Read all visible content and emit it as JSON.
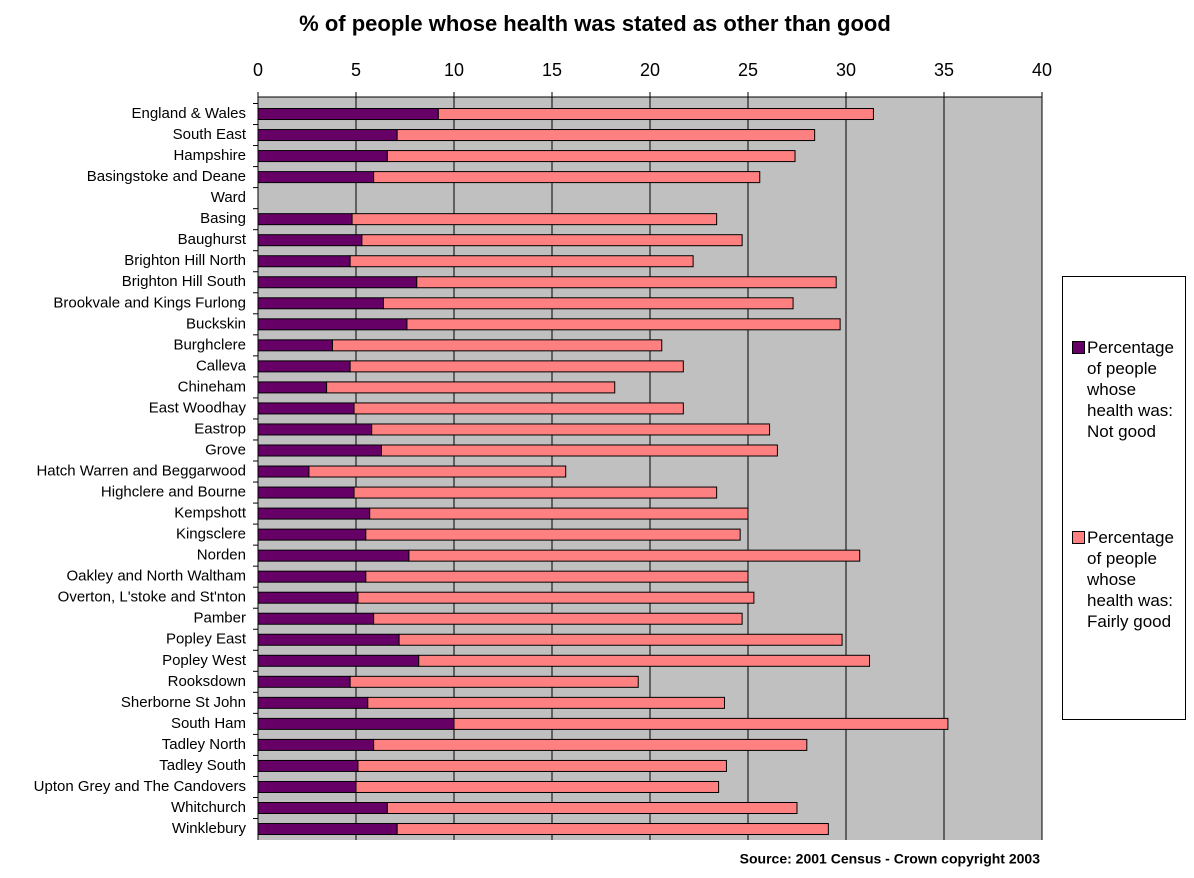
{
  "chart_data": {
    "type": "stacked_barh",
    "title": "% of people whose health was stated as other than good",
    "source": "Source: 2001 Census - Crown copyright 2003",
    "categories": [
      "England & Wales",
      "South East",
      "Hampshire",
      "Basingstoke and Deane",
      "Ward",
      "Basing",
      "Baughurst",
      "Brighton Hill North",
      "Brighton Hill South",
      "Brookvale and Kings Furlong",
      "Buckskin",
      "Burghclere",
      "Calleva",
      "Chineham",
      "East Woodhay",
      "Eastrop",
      "Grove",
      "Hatch Warren and Beggarwood",
      "Highclere and Bourne",
      "Kempshott",
      "Kingsclere",
      "Norden",
      "Oakley and North Waltham",
      "Overton, L'stoke and St'nton",
      "Pamber",
      "Popley East",
      "Popley West",
      "Rooksdown",
      "Sherborne St John",
      "South Ham",
      "Tadley North",
      "Tadley South",
      "Upton Grey and The Candovers",
      "Whitchurch",
      "Winklebury"
    ],
    "series": [
      {
        "name": "Percentage of people whose health was: Not good",
        "color": "#660066",
        "values": [
          9.2,
          7.1,
          6.6,
          5.9,
          null,
          4.8,
          5.3,
          4.7,
          8.1,
          6.4,
          7.6,
          3.8,
          4.7,
          3.5,
          4.9,
          5.8,
          6.3,
          2.6,
          4.9,
          5.7,
          5.5,
          7.7,
          5.5,
          5.1,
          5.9,
          7.2,
          8.2,
          4.7,
          5.6,
          10.0,
          5.9,
          5.1,
          5.0,
          6.6,
          7.1
        ]
      },
      {
        "name": "Percentage of people whose health was: Fairly good",
        "color": "#ff8080",
        "values": [
          22.2,
          21.3,
          20.8,
          19.7,
          null,
          18.6,
          19.4,
          17.5,
          21.4,
          20.9,
          22.1,
          16.8,
          17.0,
          14.7,
          16.8,
          20.3,
          20.2,
          13.1,
          18.5,
          19.3,
          19.1,
          23.0,
          19.5,
          20.2,
          18.8,
          22.6,
          23.0,
          14.7,
          18.2,
          25.2,
          22.1,
          18.8,
          18.5,
          20.9,
          22.0
        ]
      }
    ],
    "xlim": [
      0,
      40
    ],
    "xticks": [
      0,
      5,
      10,
      15,
      20,
      25,
      30,
      35,
      40
    ],
    "grid": true,
    "legend": "right"
  }
}
